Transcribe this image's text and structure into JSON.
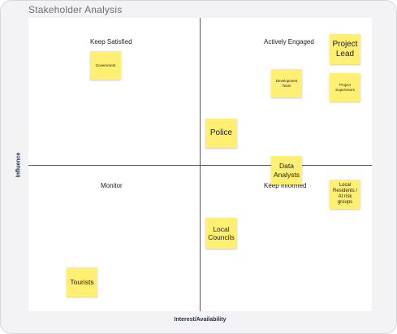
{
  "board": {
    "title": "Stakeholder Analysis"
  },
  "axes": {
    "x_label": "Interest/Availability",
    "y_label": "Influence"
  },
  "quadrants": {
    "keep_satisfied": "Keep Satisfied",
    "actively_engaged": "Actively Engaged",
    "monitor": "Monitor",
    "keep_informed": "Keep Informed"
  },
  "stickies": {
    "government": "Government",
    "project_lead": "Project Lead",
    "development_team": "Development Team",
    "project_supervisors": "Project Supervisors",
    "police": "Police",
    "data_analysts": "Data Analysts",
    "local_residents": "Local Residents / At risk groups",
    "local_councils": "Local Councils",
    "tourists": "Tourists"
  },
  "colors": {
    "sticky": "#ffef72",
    "axis": "#555a66",
    "board_background": "#f3f3f5"
  }
}
